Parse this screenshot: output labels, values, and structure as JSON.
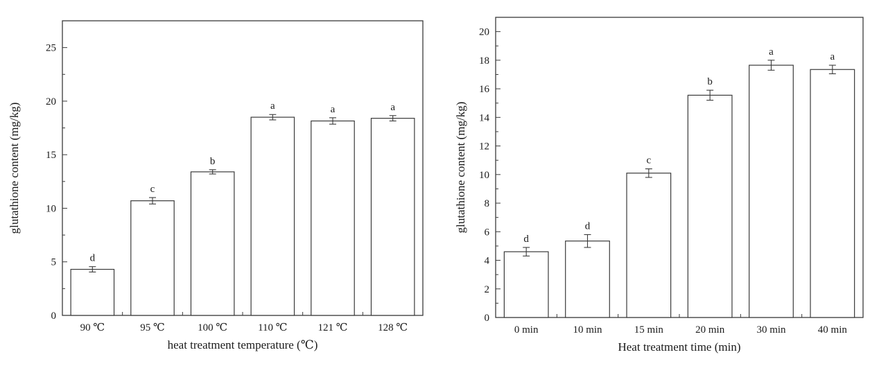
{
  "figure": {
    "background": "#ffffff",
    "description": "Two bar charts of glutathione content with error bars and significance letters"
  },
  "chart_data": [
    {
      "type": "bar",
      "title": "",
      "xlabel": "heat treatment temperature (℃)",
      "ylabel": "glutathione content (mg/kg)",
      "categories": [
        "90 ℃",
        "95 ℃",
        "100 ℃",
        "110 ℃",
        "121 ℃",
        "128 ℃"
      ],
      "values": [
        4.3,
        10.7,
        13.4,
        18.5,
        18.15,
        18.4
      ],
      "errors": [
        0.25,
        0.3,
        0.2,
        0.25,
        0.3,
        0.25
      ],
      "labels": [
        "d",
        "c",
        "b",
        "a",
        "a",
        "a"
      ],
      "ylim": [
        0,
        27.5
      ],
      "yticks": [
        0,
        5,
        10,
        15,
        20,
        25
      ],
      "minor_tick_step": 2.5,
      "bar_width_frac": 0.72,
      "bar_color": "#ffffff",
      "axis_color": "#3a3a3a",
      "text_color": "#1a1a1a",
      "grid": false,
      "legend": "none"
    },
    {
      "type": "bar",
      "title": "",
      "xlabel": "Heat treatment time (min)",
      "ylabel": "glutathione content (mg/kg)",
      "categories": [
        "0 min",
        "10 min",
        "15 min",
        "20 min",
        "30 min",
        "40 min"
      ],
      "values": [
        4.6,
        5.35,
        10.1,
        15.55,
        17.65,
        17.35
      ],
      "errors": [
        0.3,
        0.45,
        0.3,
        0.35,
        0.35,
        0.3
      ],
      "labels": [
        "d",
        "d",
        "c",
        "b",
        "a",
        "a"
      ],
      "ylim": [
        0,
        21
      ],
      "yticks": [
        0,
        2,
        4,
        6,
        8,
        10,
        12,
        14,
        16,
        18,
        20
      ],
      "minor_tick_step": 1,
      "bar_width_frac": 0.72,
      "bar_color": "#ffffff",
      "axis_color": "#3a3a3a",
      "text_color": "#1a1a1a",
      "grid": false,
      "legend": "none"
    }
  ]
}
